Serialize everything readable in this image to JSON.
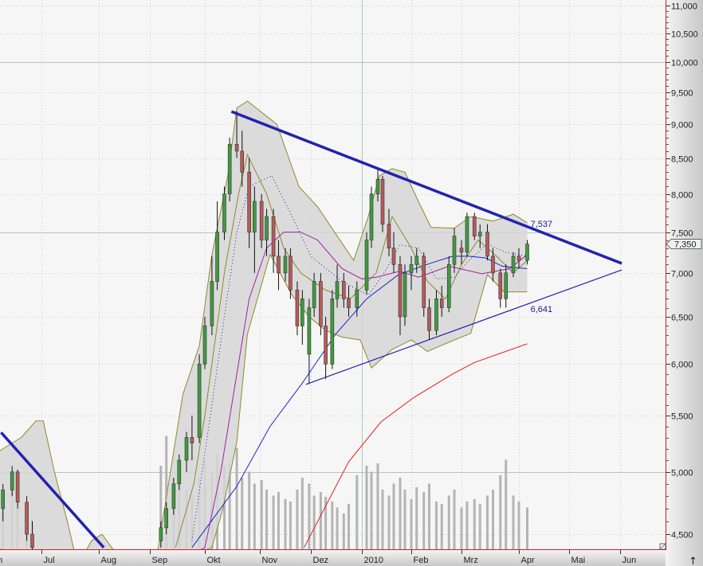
{
  "chart_data": {
    "type": "candlestick",
    "y_scale": "log",
    "ylim": [
      4400,
      11100
    ],
    "grid": true,
    "y_ticks": [
      "4,500",
      "5,000",
      "5,500",
      "6,000",
      "6,500",
      "7,000",
      "7,500",
      "8,000",
      "8,500",
      "9,000",
      "9,500",
      "10,000",
      "10,500",
      "11,000"
    ],
    "y_tick_values": [
      4500,
      5000,
      5500,
      6000,
      6500,
      7000,
      7500,
      8000,
      8500,
      9000,
      9500,
      10000,
      10500,
      11000
    ],
    "y_major_lines": [
      5000,
      7500,
      10000
    ],
    "x_ticks": [
      {
        "date": "2009-06-01",
        "label": "Jun"
      },
      {
        "date": "2009-07-01",
        "label": "Jul"
      },
      {
        "date": "2009-08-01",
        "label": "Aug"
      },
      {
        "date": "2009-09-01",
        "label": "Sep"
      },
      {
        "date": "2009-10-01",
        "label": "Okt"
      },
      {
        "date": "2009-11-01",
        "label": "Nov"
      },
      {
        "date": "2009-12-01",
        "label": "Dez"
      },
      {
        "date": "2010-01-01",
        "label": "2010"
      },
      {
        "date": "2010-02-01",
        "label": "Feb"
      },
      {
        "date": "2010-03-01",
        "label": "Mrz"
      },
      {
        "date": "2010-04-01",
        "label": "Apr"
      },
      {
        "date": "2010-05-01",
        "label": "Mai"
      },
      {
        "date": "2010-06-01",
        "label": "Jun"
      }
    ],
    "x_major_line": "2010-01-01",
    "last_price": 7350,
    "last_price_label": "7,350",
    "annotations": [
      {
        "date": "2010-04-07",
        "value": 7537,
        "text": "7,537"
      },
      {
        "date": "2010-04-07",
        "value": 6641,
        "text": "6,641"
      }
    ],
    "colors": {
      "up": "#3f9b3f",
      "down": "#b85a5a",
      "wick": "#111111",
      "volume": "#b4b4b4",
      "band_fill": "#d6d6d6",
      "band_line": "#8c8c2c",
      "ma_dotted": "#2020a0",
      "ma_purple": "#a020a0",
      "ma_blue": "#2222d0",
      "ma_red": "#e02020",
      "trendline": "#2222b0",
      "axis_border": "#cc2020"
    },
    "candles": [
      [
        "2009-06-10",
        4700,
        4900,
        4600,
        4850
      ],
      [
        "2009-06-15",
        4850,
        5050,
        4800,
        5000
      ],
      [
        "2009-06-18",
        5000,
        5020,
        4700,
        4750
      ],
      [
        "2009-06-23",
        4750,
        4800,
        4450,
        4500
      ],
      [
        "2009-06-26",
        4500,
        4600,
        4350,
        4400
      ],
      [
        "2009-09-07",
        4450,
        4600,
        4400,
        4550
      ],
      [
        "2009-09-10",
        4550,
        4750,
        4500,
        4700
      ],
      [
        "2009-09-14",
        4700,
        4950,
        4650,
        4900
      ],
      [
        "2009-09-17",
        4900,
        5150,
        4850,
        5100
      ],
      [
        "2009-09-21",
        5100,
        5350,
        5000,
        5300
      ],
      [
        "2009-09-24",
        5300,
        5500,
        5100,
        5250
      ],
      [
        "2009-09-28",
        5300,
        6100,
        5250,
        6000
      ],
      [
        "2009-10-01",
        6000,
        6500,
        5950,
        6400
      ],
      [
        "2009-10-05",
        6400,
        7200,
        6300,
        6900
      ],
      [
        "2009-10-08",
        6900,
        7900,
        6800,
        7500
      ],
      [
        "2009-10-12",
        7500,
        8100,
        7400,
        8000
      ],
      [
        "2009-10-15",
        8000,
        8800,
        7900,
        8700
      ],
      [
        "2009-10-19",
        8700,
        9200,
        8500,
        8600
      ],
      [
        "2009-10-22",
        8600,
        8900,
        8100,
        8300
      ],
      [
        "2009-10-26",
        8300,
        8500,
        7300,
        7500
      ],
      [
        "2009-10-29",
        7500,
        8100,
        7000,
        7900
      ],
      [
        "2009-11-02",
        7900,
        8000,
        7300,
        7400
      ],
      [
        "2009-11-05",
        7400,
        7800,
        7200,
        7700
      ],
      [
        "2009-11-09",
        7700,
        7800,
        7000,
        7200
      ],
      [
        "2009-11-12",
        7200,
        7400,
        6800,
        7000
      ],
      [
        "2009-11-16",
        7000,
        7300,
        6900,
        7200
      ],
      [
        "2009-11-19",
        7200,
        7300,
        6700,
        6800
      ],
      [
        "2009-11-23",
        6800,
        6900,
        6300,
        6400
      ],
      [
        "2009-11-26",
        6400,
        6800,
        6200,
        6700
      ],
      [
        "2009-11-30",
        6100,
        6700,
        5800,
        6600
      ],
      [
        "2009-12-03",
        6600,
        7000,
        6500,
        6900
      ],
      [
        "2009-12-07",
        6900,
        7000,
        6300,
        6400
      ],
      [
        "2009-12-10",
        6400,
        6500,
        5850,
        6000
      ],
      [
        "2009-12-14",
        6000,
        6800,
        5950,
        6700
      ],
      [
        "2009-12-17",
        6700,
        7100,
        6600,
        6900
      ],
      [
        "2009-12-21",
        6900,
        7000,
        6600,
        6700
      ],
      [
        "2009-12-24",
        6700,
        6850,
        6500,
        6600
      ],
      [
        "2009-12-29",
        6600,
        6900,
        6500,
        6800
      ],
      [
        "2010-01-04",
        6800,
        7500,
        6750,
        7400
      ],
      [
        "2010-01-07",
        7400,
        8100,
        7300,
        8000
      ],
      [
        "2010-01-11",
        8000,
        8350,
        7900,
        8200
      ],
      [
        "2010-01-14",
        8200,
        8250,
        7500,
        7600
      ],
      [
        "2010-01-18",
        7600,
        7800,
        7200,
        7300
      ],
      [
        "2010-01-21",
        7300,
        7500,
        7000,
        7100
      ],
      [
        "2010-01-25",
        7100,
        7200,
        6300,
        6500
      ],
      [
        "2010-01-28",
        6500,
        7100,
        6400,
        7000
      ],
      [
        "2010-02-01",
        7000,
        7200,
        6800,
        7100
      ],
      [
        "2010-02-04",
        7100,
        7300,
        7000,
        7200
      ],
      [
        "2010-02-08",
        7200,
        7250,
        6500,
        6600
      ],
      [
        "2010-02-11",
        6600,
        6700,
        6250,
        6350
      ],
      [
        "2010-02-15",
        6350,
        6800,
        6300,
        6700
      ],
      [
        "2010-02-18",
        6700,
        6850,
        6500,
        6600
      ],
      [
        "2010-02-22",
        6600,
        7200,
        6550,
        7100
      ],
      [
        "2010-02-25",
        7100,
        7550,
        7000,
        7450
      ],
      [
        "2010-03-01",
        7300,
        7400,
        7100,
        7250
      ],
      [
        "2010-03-04",
        7250,
        7750,
        7200,
        7700
      ],
      [
        "2010-03-08",
        7700,
        7750,
        7400,
        7450
      ],
      [
        "2010-03-11",
        7450,
        7600,
        7300,
        7500
      ],
      [
        "2010-03-15",
        7500,
        7600,
        7150,
        7200
      ],
      [
        "2010-03-18",
        7200,
        7300,
        6900,
        7000
      ],
      [
        "2010-03-22",
        7000,
        7050,
        6600,
        6700
      ],
      [
        "2010-03-25",
        6700,
        7100,
        6600,
        7000
      ],
      [
        "2010-03-29",
        7000,
        7250,
        6950,
        7200
      ],
      [
        "2010-04-01",
        7200,
        7300,
        7050,
        7150
      ],
      [
        "2010-04-06",
        7150,
        7400,
        7100,
        7350
      ]
    ],
    "volume_relative": [
      40,
      55,
      35,
      30,
      25,
      70,
      95,
      60,
      55,
      50,
      45,
      60,
      75,
      65,
      80,
      70,
      72,
      85,
      60,
      65,
      55,
      58,
      50,
      45,
      48,
      42,
      40,
      50,
      60,
      55,
      45,
      48,
      44,
      40,
      35,
      30,
      38,
      62,
      70,
      65,
      72,
      50,
      45,
      55,
      60,
      50,
      42,
      52,
      48,
      55,
      40,
      38,
      45,
      50,
      35,
      40,
      42,
      38,
      45,
      50,
      62,
      75,
      45,
      40,
      35,
      30
    ],
    "bands": [
      {
        "upper": [
          [
            "2009-06-05",
            5150
          ],
          [
            "2009-06-20",
            5300
          ],
          [
            "2009-06-28",
            5450
          ],
          [
            "2009-07-02",
            5450
          ],
          [
            "2009-07-08",
            5000
          ],
          [
            "2009-07-15",
            4600
          ],
          [
            "2009-07-20",
            4300
          ]
        ],
        "lower": [
          [
            "2009-06-05",
            4400
          ],
          [
            "2009-07-20",
            4250
          ]
        ]
      },
      {
        "upper": [
          [
            "2009-07-22",
            4300
          ],
          [
            "2009-07-28",
            4450
          ],
          [
            "2009-08-03",
            4500
          ],
          [
            "2009-08-10",
            4380
          ]
        ],
        "lower": [
          [
            "2009-07-22",
            4250
          ],
          [
            "2009-08-10",
            4250
          ]
        ]
      },
      {
        "upper": [
          [
            "2009-09-05",
            4350
          ],
          [
            "2009-09-19",
            5700
          ],
          [
            "2009-09-28",
            6190
          ],
          [
            "2009-10-05",
            7220
          ],
          [
            "2009-10-14",
            8260
          ],
          [
            "2009-10-19",
            9250
          ],
          [
            "2009-10-25",
            9360
          ],
          [
            "2009-11-11",
            9000
          ],
          [
            "2009-11-24",
            8100
          ],
          [
            "2009-12-05",
            7830
          ],
          [
            "2009-12-27",
            7150
          ],
          [
            "2010-01-05",
            7700
          ],
          [
            "2010-01-12",
            8250
          ],
          [
            "2010-01-20",
            8350
          ],
          [
            "2010-01-28",
            8300
          ],
          [
            "2010-02-05",
            7900
          ],
          [
            "2010-02-12",
            7560
          ],
          [
            "2010-02-25",
            7550
          ],
          [
            "2010-03-06",
            7700
          ],
          [
            "2010-03-18",
            7640
          ],
          [
            "2010-03-29",
            7730
          ],
          [
            "2010-04-06",
            7620
          ]
        ],
        "lower": [
          [
            "2009-09-05",
            4250
          ],
          [
            "2009-10-05",
            4400
          ],
          [
            "2009-10-11",
            4690
          ],
          [
            "2009-10-19",
            5260
          ],
          [
            "2009-10-25",
            6310
          ],
          [
            "2009-11-07",
            7220
          ],
          [
            "2009-11-20",
            6740
          ],
          [
            "2009-11-30",
            6500
          ],
          [
            "2009-12-10",
            6350
          ],
          [
            "2009-12-20",
            6280
          ],
          [
            "2009-12-31",
            6250
          ],
          [
            "2010-01-07",
            5960
          ],
          [
            "2010-01-20",
            6150
          ],
          [
            "2010-02-01",
            6250
          ],
          [
            "2010-02-10",
            6130
          ],
          [
            "2010-02-25",
            6250
          ],
          [
            "2010-03-06",
            6320
          ],
          [
            "2010-03-15",
            6980
          ],
          [
            "2010-03-24",
            6780
          ],
          [
            "2010-04-06",
            6780
          ]
        ],
        "mid": [
          [
            "2009-09-15",
            4400
          ],
          [
            "2009-09-25",
            4900
          ],
          [
            "2009-10-01",
            5500
          ],
          [
            "2009-10-12",
            7000
          ],
          [
            "2009-10-20",
            8000
          ],
          [
            "2009-10-25",
            8550
          ],
          [
            "2009-11-05",
            8000
          ],
          [
            "2009-11-15",
            7300
          ],
          [
            "2009-11-25",
            7000
          ],
          [
            "2009-12-10",
            6800
          ],
          [
            "2009-12-25",
            6700
          ],
          [
            "2010-01-10",
            7000
          ],
          [
            "2010-01-20",
            7700
          ],
          [
            "2010-02-01",
            7300
          ],
          [
            "2010-02-10",
            6900
          ],
          [
            "2010-02-20",
            6700
          ],
          [
            "2010-03-01",
            7100
          ],
          [
            "2010-03-10",
            7400
          ],
          [
            "2010-03-20",
            7200
          ],
          [
            "2010-03-29",
            7000
          ],
          [
            "2010-04-06",
            7150
          ]
        ]
      }
    ],
    "moving_averages": [
      {
        "style": "dotted",
        "color_key": "ma_dotted",
        "points": [
          [
            "2009-09-24",
            4450
          ],
          [
            "2009-10-05",
            5600
          ],
          [
            "2009-10-12",
            6500
          ],
          [
            "2009-10-19",
            7500
          ],
          [
            "2009-10-26",
            8100
          ],
          [
            "2009-11-08",
            8250
          ],
          [
            "2009-11-20",
            7700
          ],
          [
            "2009-12-01",
            7200
          ],
          [
            "2009-12-20",
            6900
          ],
          [
            "2010-01-05",
            6740
          ],
          [
            "2010-01-15",
            7000
          ],
          [
            "2010-01-25",
            7340
          ],
          [
            "2010-02-05",
            7300
          ],
          [
            "2010-02-15",
            6930
          ],
          [
            "2010-02-25",
            6950
          ],
          [
            "2010-03-05",
            7150
          ],
          [
            "2010-03-15",
            7350
          ],
          [
            "2010-03-25",
            7250
          ],
          [
            "2010-04-06",
            7200
          ]
        ]
      },
      {
        "style": "solid",
        "color_key": "ma_purple",
        "points": [
          [
            "2009-09-24",
            4350
          ],
          [
            "2009-10-01",
            4400
          ],
          [
            "2009-10-10",
            5000
          ],
          [
            "2009-10-19",
            5900
          ],
          [
            "2009-10-26",
            6700
          ],
          [
            "2009-11-05",
            7300
          ],
          [
            "2009-11-15",
            7500
          ],
          [
            "2009-11-25",
            7500
          ],
          [
            "2009-12-05",
            7400
          ],
          [
            "2009-12-20",
            7050
          ],
          [
            "2010-01-01",
            6930
          ],
          [
            "2010-01-10",
            6950
          ],
          [
            "2010-01-25",
            7020
          ],
          [
            "2010-02-05",
            6950
          ],
          [
            "2010-02-22",
            7080
          ],
          [
            "2010-03-12",
            6990
          ],
          [
            "2010-03-27",
            7050
          ],
          [
            "2010-04-06",
            7220
          ]
        ]
      },
      {
        "style": "solid",
        "color_key": "ma_blue",
        "points": [
          [
            "2009-09-24",
            4400
          ],
          [
            "2009-10-19",
            4880
          ],
          [
            "2009-11-07",
            5400
          ],
          [
            "2009-11-26",
            5810
          ],
          [
            "2009-12-16",
            6310
          ],
          [
            "2010-01-04",
            6700
          ],
          [
            "2010-01-24",
            6980
          ],
          [
            "2010-02-11",
            7110
          ],
          [
            "2010-02-24",
            7200
          ],
          [
            "2010-03-05",
            7200
          ],
          [
            "2010-03-14",
            7180
          ],
          [
            "2010-03-23",
            7080
          ],
          [
            "2010-04-06",
            7050
          ]
        ]
      },
      {
        "style": "solid",
        "color_key": "ma_red",
        "points": [
          [
            "2009-11-27",
            4400
          ],
          [
            "2009-12-24",
            5087
          ],
          [
            "2010-01-13",
            5441
          ],
          [
            "2010-02-02",
            5666
          ],
          [
            "2010-02-24",
            5900
          ],
          [
            "2010-03-08",
            6017
          ],
          [
            "2010-04-06",
            6209
          ]
        ]
      }
    ],
    "trendlines": [
      {
        "weight": "thick",
        "from": [
          "2009-10-16",
          9195
        ],
        "to": [
          "2010-06-02",
          7113
        ]
      },
      {
        "weight": "thin",
        "from": [
          "2009-11-28",
          5797
        ],
        "to": [
          "2010-06-02",
          7036
        ]
      },
      {
        "weight": "thick",
        "from": [
          "2009-06-09",
          5345
        ],
        "to": [
          "2009-08-04",
          4400
        ]
      }
    ]
  }
}
